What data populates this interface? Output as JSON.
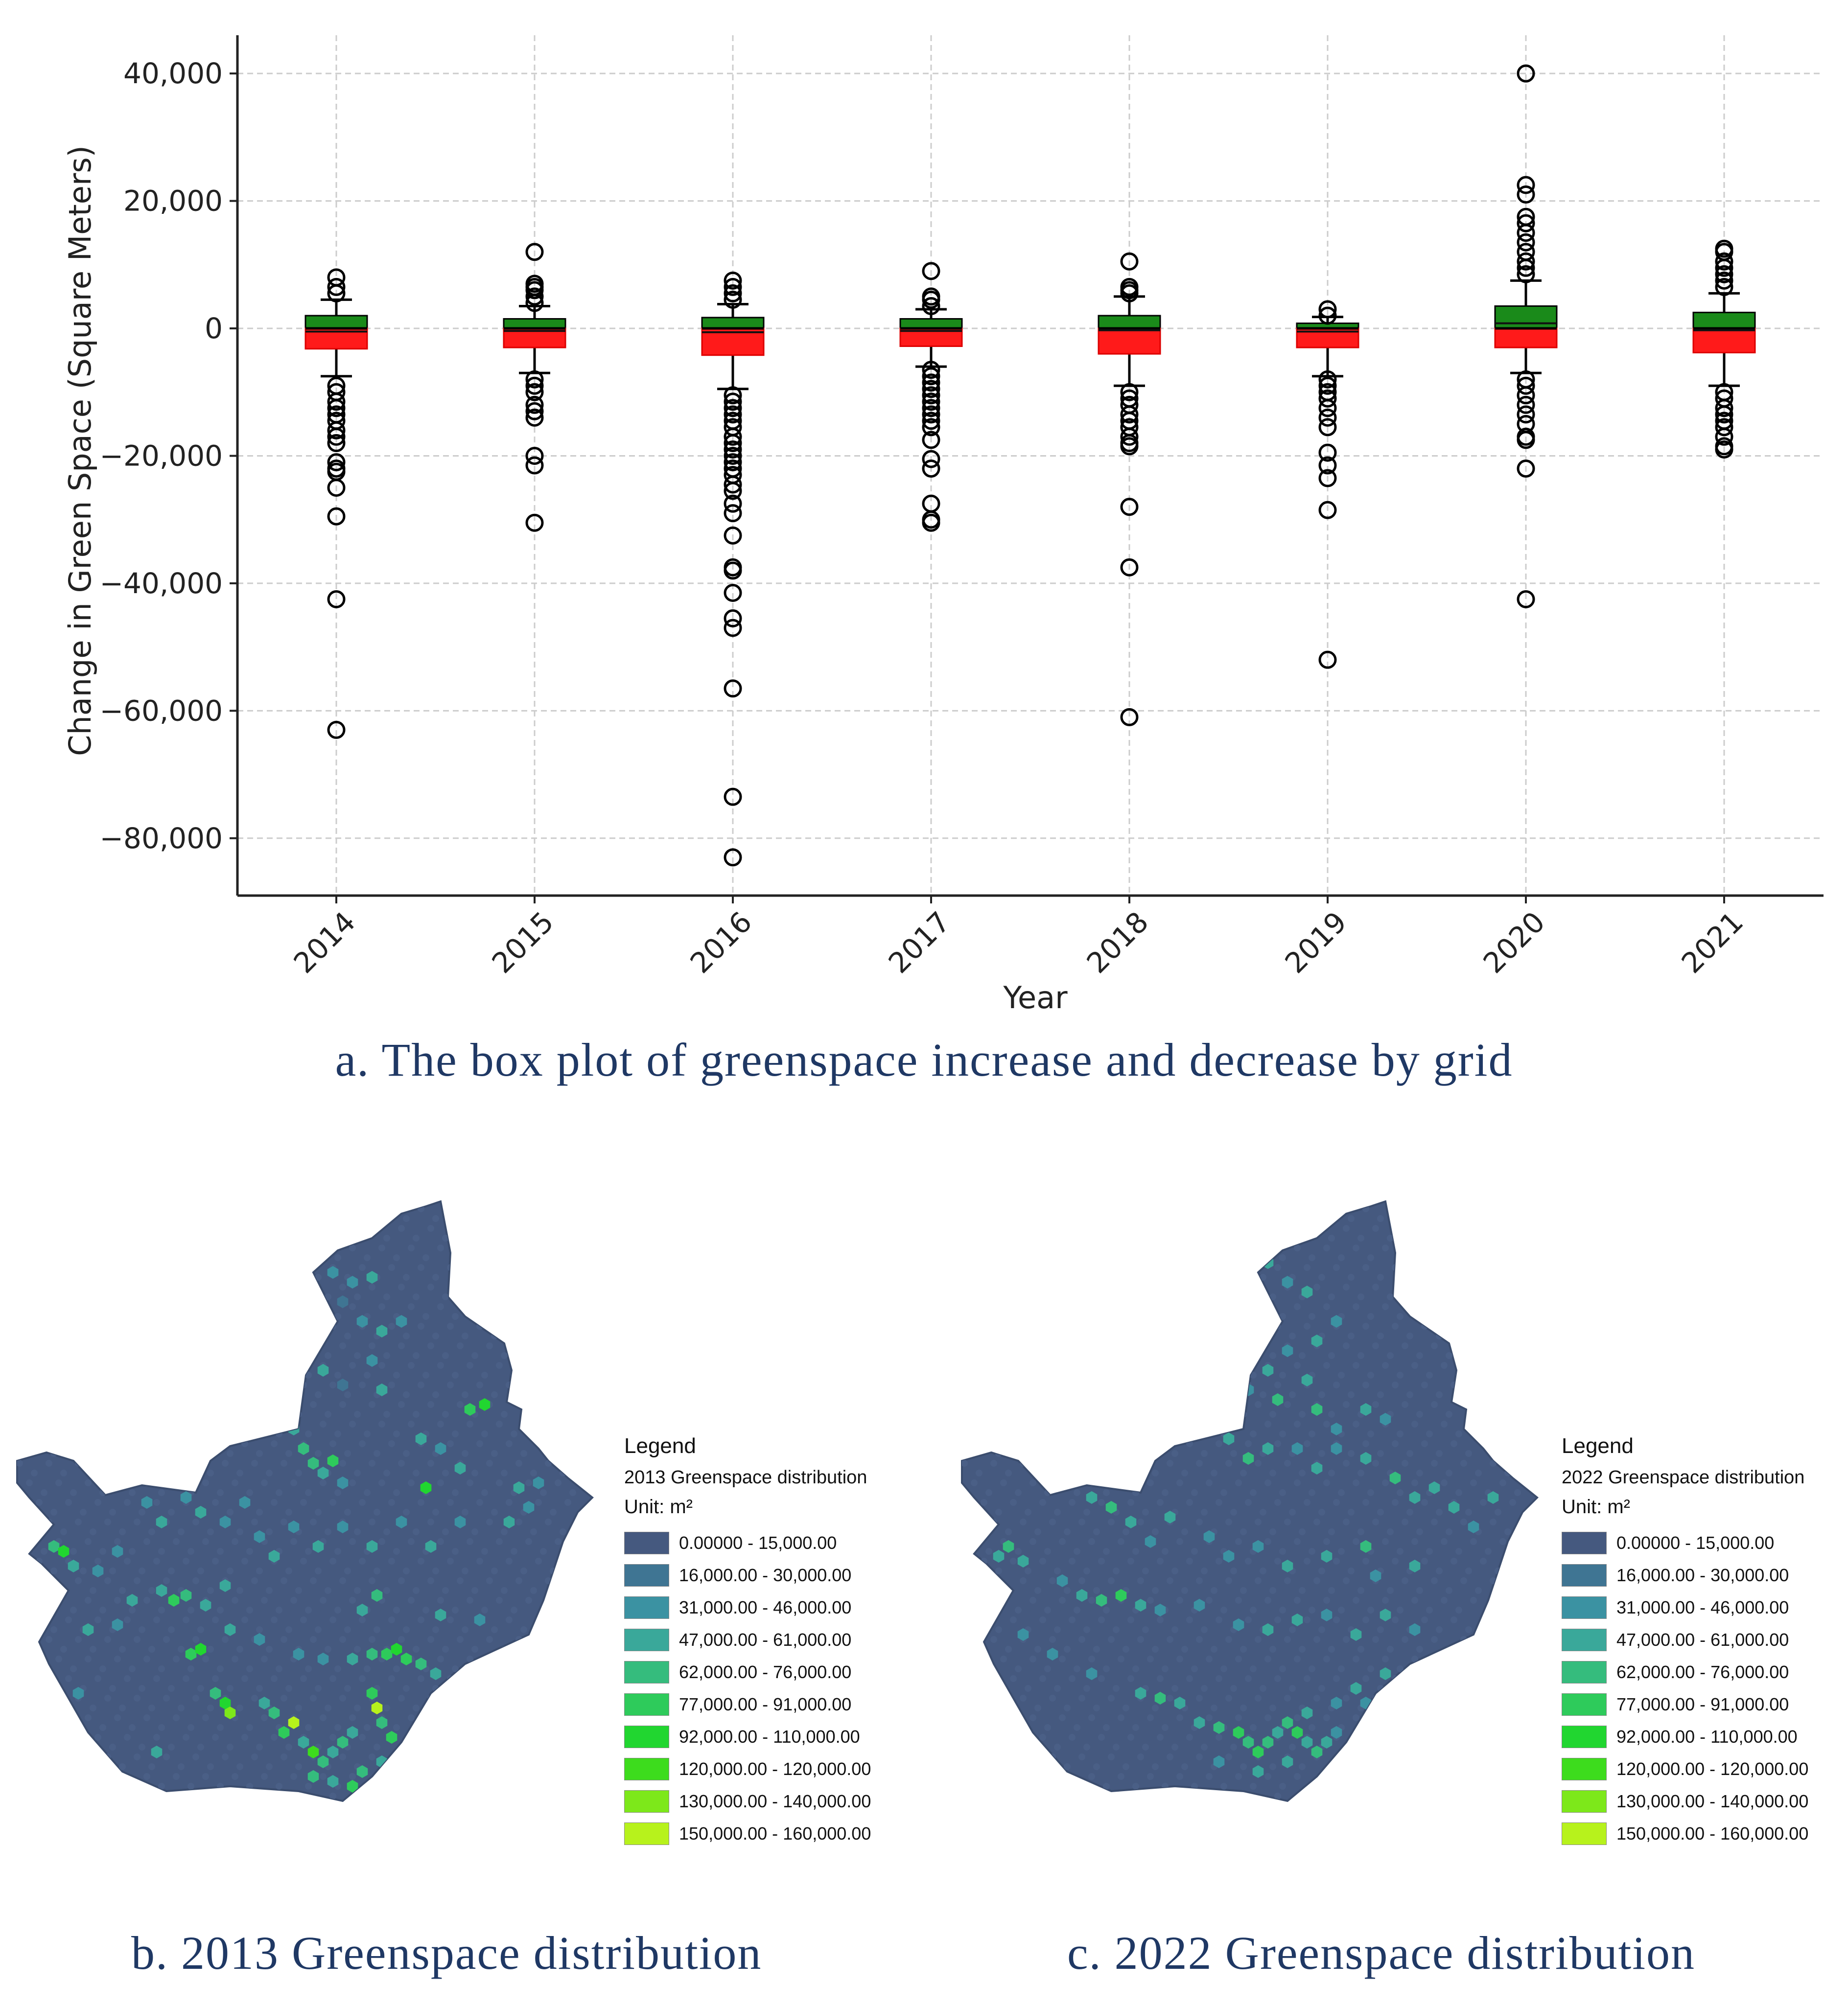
{
  "chart_data": [
    {
      "type": "box",
      "title": "",
      "xlabel": "Year",
      "ylabel": "Change in Green Space (Square Meters)",
      "ylim": [
        -89000,
        46000
      ],
      "yticks": [
        40000,
        20000,
        0,
        -20000,
        -40000,
        -60000,
        -80000
      ],
      "ytick_labels": [
        "40,000",
        "20,000",
        "0",
        "−20,000",
        "−40,000",
        "−60,000",
        "−80,000"
      ],
      "grid": true,
      "colors": {
        "increase_box": "#1a8a1a",
        "decrease_box": "#ff1a1a",
        "outlier": "#000000",
        "grid": "#cccccc"
      },
      "categories": [
        "2014",
        "2015",
        "2016",
        "2017",
        "2018",
        "2019",
        "2020",
        "2021"
      ],
      "boxes": [
        {
          "year": "2014",
          "q1": -3200,
          "median": -500,
          "q3": 2000,
          "green_top": 2000,
          "green_bottom": 0,
          "red_top": 0,
          "red_bottom": -3200,
          "whisker_low": -7500,
          "whisker_high": 4500,
          "outliers": [
            8000,
            6500,
            5500,
            -9000,
            -10000,
            -11500,
            -12500,
            -13500,
            -14500,
            -16000,
            -17000,
            -18000,
            -21000,
            -22000,
            -22500,
            -25000,
            -29500,
            -42500,
            -63000
          ]
        },
        {
          "year": "2015",
          "q1": -3000,
          "median": -400,
          "q3": 1500,
          "green_top": 1500,
          "green_bottom": 0,
          "red_top": 0,
          "red_bottom": -3000,
          "whisker_low": -7000,
          "whisker_high": 3500,
          "outliers": [
            12000,
            7000,
            6500,
            6000,
            5000,
            4000,
            -8000,
            -9000,
            -10000,
            -12000,
            -13000,
            -14000,
            -20000,
            -21500,
            -30500
          ]
        },
        {
          "year": "2016",
          "q1": -4200,
          "median": -600,
          "q3": 1700,
          "green_top": 1700,
          "green_bottom": 0,
          "red_top": 0,
          "red_bottom": -4200,
          "whisker_low": -9500,
          "whisker_high": 3800,
          "outliers": [
            7500,
            6500,
            5500,
            4500,
            -10500,
            -11500,
            -12500,
            -13500,
            -14500,
            -15500,
            -17000,
            -18000,
            -19000,
            -20000,
            -21000,
            -22000,
            -23000,
            -24500,
            -25500,
            -27500,
            -29000,
            -32500,
            -37500,
            -38000,
            -41500,
            -45500,
            -47000,
            -56500,
            -73500,
            -83000
          ]
        },
        {
          "year": "2017",
          "q1": -2800,
          "median": -400,
          "q3": 1500,
          "green_top": 1500,
          "green_bottom": 0,
          "red_top": 0,
          "red_bottom": -2800,
          "whisker_low": -6000,
          "whisker_high": 3000,
          "outliers": [
            9000,
            5000,
            4500,
            3500,
            -6500,
            -7500,
            -8500,
            -9500,
            -10500,
            -11500,
            -12500,
            -13500,
            -14500,
            -15500,
            -17500,
            -20500,
            -22000,
            -27500,
            -30000,
            -30500
          ]
        },
        {
          "year": "2018",
          "q1": -4000,
          "median": -300,
          "q3": 2000,
          "green_top": 2000,
          "green_bottom": 0,
          "red_top": 0,
          "red_bottom": -4000,
          "whisker_low": -9000,
          "whisker_high": 5000,
          "outliers": [
            10500,
            6500,
            6000,
            5500,
            -10000,
            -11000,
            -12000,
            -13500,
            -14500,
            -15500,
            -17000,
            -18000,
            -18500,
            -28000,
            -37500,
            -61000
          ]
        },
        {
          "year": "2019",
          "q1": -3000,
          "median": -500,
          "q3": 800,
          "green_top": 800,
          "green_bottom": 0,
          "red_top": 0,
          "red_bottom": -3000,
          "whisker_low": -7500,
          "whisker_high": 1800,
          "outliers": [
            3000,
            2000,
            -8000,
            -9000,
            -10000,
            -11000,
            -12500,
            -14000,
            -15500,
            -19500,
            -21500,
            -23500,
            -28500,
            -52000
          ]
        },
        {
          "year": "2020",
          "q1": -3000,
          "median": 800,
          "q3": 3500,
          "green_top": 3500,
          "green_bottom": 0,
          "red_top": 0,
          "red_bottom": -3000,
          "whisker_low": -7000,
          "whisker_high": 7500,
          "outliers": [
            40000,
            22500,
            21000,
            17500,
            16500,
            15000,
            13500,
            12000,
            10500,
            9500,
            8500,
            -8000,
            -9000,
            -10500,
            -12000,
            -13500,
            -15000,
            -17000,
            -17500,
            -22000,
            -42500
          ]
        },
        {
          "year": "2021",
          "q1": -3800,
          "median": -300,
          "q3": 2500,
          "green_top": 2500,
          "green_bottom": 0,
          "red_top": 0,
          "red_bottom": -3800,
          "whisker_low": -9000,
          "whisker_high": 5500,
          "outliers": [
            12500,
            12000,
            10500,
            9500,
            8500,
            7500,
            6500,
            -10000,
            -11000,
            -12500,
            -13500,
            -14500,
            -15500,
            -17000,
            -18500,
            -19000
          ]
        }
      ]
    },
    {
      "type": "choropleth-map",
      "title": "2013 Greenspace distribution",
      "legend_title": "Legend",
      "legend_subtitle": "2013 Greenspace distribution",
      "unit": "Unit: m²",
      "classes": [
        {
          "label": "0.00000 - 15,000.00",
          "color": "#45597f"
        },
        {
          "label": "16,000.00 - 30,000.00",
          "color": "#3f7593"
        },
        {
          "label": "31,000.00 - 46,000.00",
          "color": "#3b92a2"
        },
        {
          "label": "47,000.00 - 61,000.00",
          "color": "#3aa89a"
        },
        {
          "label": "62,000.00 - 76,000.00",
          "color": "#35bc7d"
        },
        {
          "label": "77,000.00 - 91,000.00",
          "color": "#2ecb5b"
        },
        {
          "label": "92,000.00 - 110,000.00",
          "color": "#21d630"
        },
        {
          "label": "120,000.00 - 120,000.00",
          "color": "#3ddc1d"
        },
        {
          "label": "130,000.00 - 140,000.00",
          "color": "#7de81a"
        },
        {
          "label": "150,000.00 - 160,000.00",
          "color": "#b7f21c"
        }
      ]
    },
    {
      "type": "choropleth-map",
      "title": "2022 Greenspace distribution",
      "legend_title": "Legend",
      "legend_subtitle": "2022 Greenspace distribution",
      "unit": "Unit: m²",
      "classes": [
        {
          "label": "0.00000 - 15,000.00",
          "color": "#45597f"
        },
        {
          "label": "16,000.00 - 30,000.00",
          "color": "#3f7593"
        },
        {
          "label": "31,000.00 - 46,000.00",
          "color": "#3b92a2"
        },
        {
          "label": "47,000.00 - 61,000.00",
          "color": "#3aa89a"
        },
        {
          "label": "62,000.00 - 76,000.00",
          "color": "#35bc7d"
        },
        {
          "label": "77,000.00 - 91,000.00",
          "color": "#2ecb5b"
        },
        {
          "label": "92,000.00 - 110,000.00",
          "color": "#21d630"
        },
        {
          "label": "120,000.00 - 120,000.00",
          "color": "#3ddc1d"
        },
        {
          "label": "130,000.00 - 140,000.00",
          "color": "#7de81a"
        },
        {
          "label": "150,000.00 - 160,000.00",
          "color": "#b7f21c"
        }
      ]
    }
  ],
  "captions": {
    "a": "a. The box plot of greenspace increase and decrease by grid",
    "b": "b. 2013 Greenspace distribution",
    "c": "c. 2022 Greenspace distribution"
  }
}
